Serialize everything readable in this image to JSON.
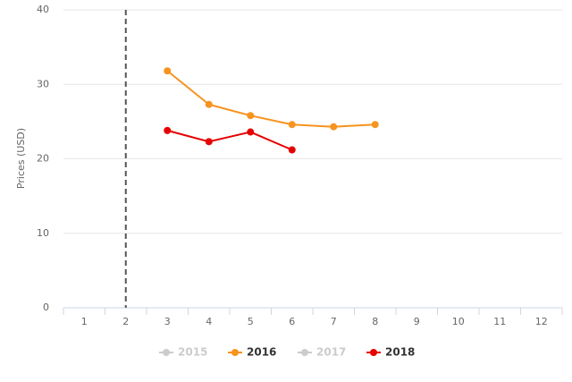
{
  "chart_data": {
    "type": "line",
    "y_label": "Prices (USD)",
    "categories": [
      "1",
      "2",
      "3",
      "4",
      "5",
      "6",
      "7",
      "8",
      "9",
      "10",
      "11",
      "12"
    ],
    "series": [
      {
        "name": "2015",
        "color": "#cccccc",
        "visible": false,
        "values": [
          null,
          null,
          null,
          null,
          null,
          null,
          null,
          null,
          null,
          null,
          null,
          null
        ]
      },
      {
        "name": "2016",
        "color": "#f7931e",
        "visible": true,
        "values": [
          null,
          null,
          31.8,
          27.3,
          25.8,
          24.6,
          24.3,
          24.6,
          null,
          null,
          null,
          null
        ]
      },
      {
        "name": "2017",
        "color": "#cccccc",
        "visible": false,
        "values": [
          null,
          null,
          null,
          null,
          null,
          null,
          null,
          null,
          null,
          null,
          null,
          null
        ]
      },
      {
        "name": "2018",
        "color": "#e60000",
        "visible": true,
        "values": [
          null,
          null,
          23.8,
          22.3,
          23.6,
          21.2,
          null,
          null,
          null,
          null,
          null,
          null
        ]
      }
    ],
    "plot_line_category": "2",
    "ylim": [
      0,
      40
    ],
    "yticks": [
      0,
      10,
      20,
      30,
      40
    ],
    "grid": true,
    "legend": "bottom"
  }
}
